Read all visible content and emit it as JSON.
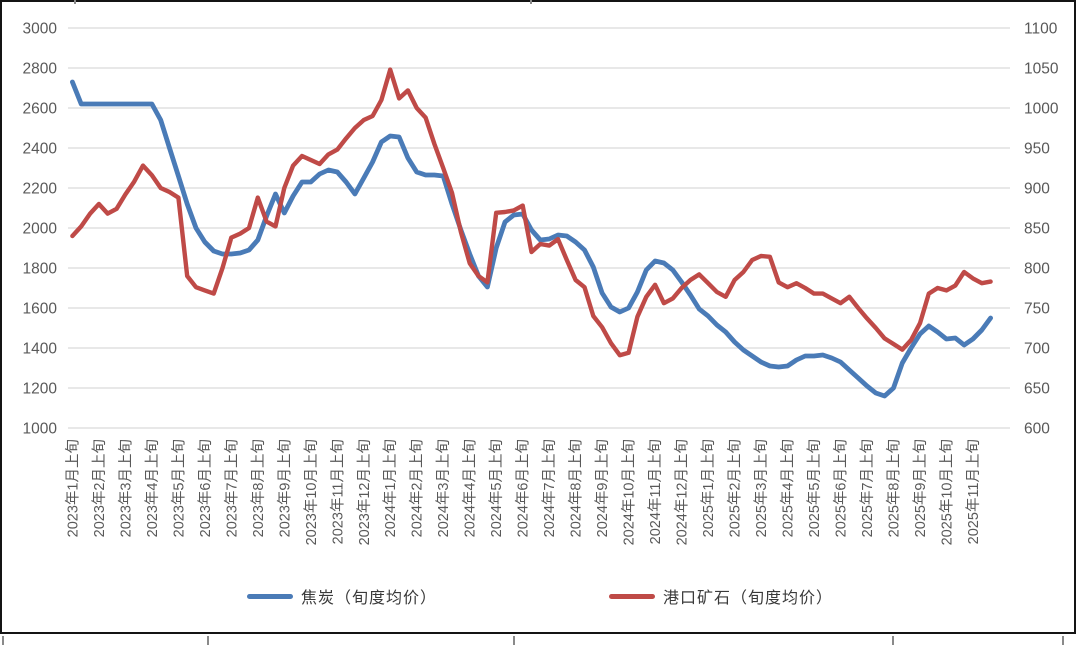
{
  "chart_data": {
    "type": "line",
    "title": "",
    "xlabel": "",
    "ylabel_left": "",
    "ylabel_right": "",
    "grid": true,
    "legend_position": "bottom",
    "periods_per_month": 3,
    "period_names": [
      "上旬",
      "中旬",
      "下旬"
    ],
    "x_tick_labels": [
      "2023年1月上旬",
      "2023年2月上旬",
      "2023年3月上旬",
      "2023年4月上旬",
      "2023年5月上旬",
      "2023年6月上旬",
      "2023年7月上旬",
      "2023年8月上旬",
      "2023年9月上旬",
      "2023年10月上旬",
      "2023年11月上旬",
      "2023年12月上旬",
      "2024年1月上旬",
      "2024年2月上旬",
      "2024年3月上旬",
      "2024年4月上旬",
      "2024年5月上旬",
      "2024年6月上旬",
      "2024年7月上旬",
      "2024年8月上旬",
      "2024年9月上旬",
      "2024年10月上旬",
      "2024年11月上旬",
      "2024年12月上旬",
      "2025年1月上旬",
      "2025年2月上旬",
      "2025年3月上旬",
      "2025年4月上旬",
      "2025年5月上旬",
      "2025年6月上旬",
      "2025年7月上旬",
      "2025年8月上旬",
      "2025年9月上旬",
      "2025年10月上旬",
      "2025年11月上旬"
    ],
    "left_axis": {
      "min": 1000,
      "max": 3000,
      "step": 200,
      "ticks": [
        3000,
        2800,
        2600,
        2400,
        2200,
        2000,
        1800,
        1600,
        1400,
        1200,
        1000
      ]
    },
    "right_axis": {
      "min": 600,
      "max": 1100,
      "step": 50,
      "ticks": [
        1100,
        1050,
        1000,
        950,
        900,
        850,
        800,
        750,
        700,
        650,
        600
      ]
    },
    "series": [
      {
        "name": "焦炭（旬度均价）",
        "axis": "left",
        "color": "#4A7BB7",
        "values": [
          2730,
          2620,
          2620,
          2620,
          2620,
          2620,
          2620,
          2620,
          2620,
          2620,
          2540,
          2400,
          2260,
          2120,
          2000,
          1930,
          1885,
          1870,
          1870,
          1875,
          1890,
          1940,
          2060,
          2170,
          2075,
          2160,
          2230,
          2230,
          2270,
          2290,
          2280,
          2230,
          2170,
          2250,
          2330,
          2430,
          2460,
          2455,
          2350,
          2280,
          2265,
          2265,
          2260,
          2120,
          1990,
          1870,
          1760,
          1705,
          1900,
          2030,
          2065,
          2070,
          1990,
          1940,
          1945,
          1965,
          1960,
          1930,
          1890,
          1805,
          1675,
          1605,
          1580,
          1600,
          1680,
          1790,
          1835,
          1825,
          1790,
          1730,
          1665,
          1595,
          1560,
          1515,
          1480,
          1430,
          1390,
          1360,
          1330,
          1310,
          1305,
          1310,
          1340,
          1360,
          1360,
          1365,
          1350,
          1330,
          1290,
          1250,
          1210,
          1175,
          1160,
          1200,
          1325,
          1400,
          1470,
          1510,
          1480,
          1445,
          1450,
          1415,
          1445,
          1490,
          1550
        ]
      },
      {
        "name": "港口矿石（旬度均价）",
        "axis": "right",
        "color": "#BF4A47",
        "values": [
          840,
          852,
          868,
          880,
          868,
          874,
          892,
          908,
          928,
          916,
          900,
          895,
          888,
          790,
          776,
          772,
          768,
          800,
          838,
          843,
          850,
          888,
          858,
          852,
          900,
          928,
          940,
          935,
          930,
          942,
          948,
          962,
          975,
          985,
          990,
          1010,
          1048,
          1012,
          1022,
          1000,
          988,
          955,
          925,
          894,
          845,
          806,
          790,
          782,
          869,
          870,
          872,
          878,
          820,
          830,
          828,
          836,
          810,
          785,
          776,
          740,
          726,
          706,
          691,
          694,
          739,
          764,
          779,
          756,
          762,
          775,
          785,
          792,
          781,
          770,
          764,
          785,
          795,
          810,
          815,
          814,
          782,
          776,
          781,
          775,
          768,
          768,
          762,
          756,
          764,
          750,
          737,
          725,
          712,
          705,
          698,
          710,
          731,
          768,
          775,
          772,
          778,
          795,
          787,
          781,
          783
        ]
      }
    ]
  },
  "legend": {
    "items": [
      {
        "label": "焦炭（旬度均价）",
        "color": "#4A7BB7"
      },
      {
        "label": "港口矿石（旬度均价）",
        "color": "#BF4A47"
      }
    ]
  },
  "style": {
    "gridline_color": "#D9D9D9",
    "axis_text_color": "#595959",
    "frame_border_color": "#141414",
    "background": "#FFFFFF"
  },
  "frame_ticks": {
    "top_x": [
      74,
      530
    ],
    "bottom_x": [
      2,
      207,
      513,
      892,
      1062
    ]
  }
}
